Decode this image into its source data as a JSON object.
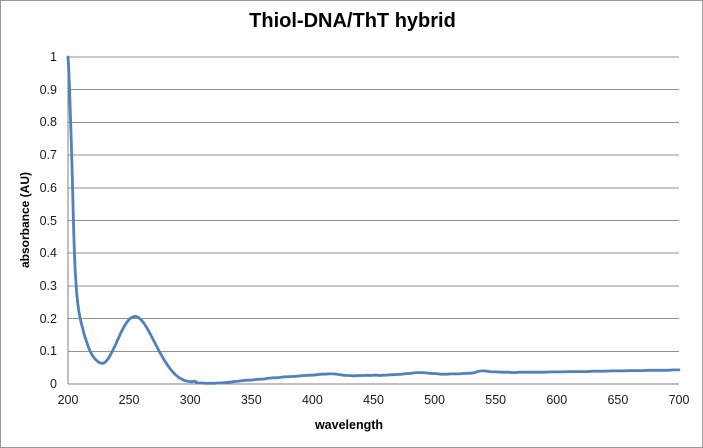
{
  "chart_data": {
    "type": "line",
    "title": "Thiol-DNA/ThT hybrid",
    "xlabel": "wavelength",
    "ylabel": "absorbance (AU)",
    "xlim": [
      200,
      700
    ],
    "ylim": [
      0,
      1
    ],
    "x_ticks": [
      "200",
      "250",
      "300",
      "350",
      "400",
      "450",
      "500",
      "550",
      "600",
      "650",
      "700"
    ],
    "y_ticks": [
      "1",
      "0.9",
      "0.8",
      "0.7",
      "0.6",
      "0.5",
      "0.4",
      "0.3",
      "0.2",
      "0.1",
      "0"
    ],
    "grid": "horizontal-major",
    "legend_position": "none",
    "colors": {
      "series_line": "#4F81BD",
      "gridline": "#909090",
      "axis_line": "#808080",
      "chart_border": "#9b9b9b",
      "text": "#000000"
    },
    "series": [
      {
        "name": "absorbance",
        "color": "#4F81BD",
        "points": [
          [
            200,
            1.0
          ],
          [
            200.5,
            0.97
          ],
          [
            201,
            0.93
          ],
          [
            201.5,
            0.88
          ],
          [
            202,
            0.82
          ],
          [
            202.5,
            0.76
          ],
          [
            203,
            0.7
          ],
          [
            203.5,
            0.63
          ],
          [
            204,
            0.56
          ],
          [
            204.5,
            0.49
          ],
          [
            205,
            0.43
          ],
          [
            205.5,
            0.38
          ],
          [
            206,
            0.34
          ],
          [
            207,
            0.28
          ],
          [
            208,
            0.245
          ],
          [
            209,
            0.22
          ],
          [
            210,
            0.2
          ],
          [
            211,
            0.185
          ],
          [
            212,
            0.17
          ],
          [
            213,
            0.155
          ],
          [
            214,
            0.143
          ],
          [
            215,
            0.132
          ],
          [
            216,
            0.12
          ],
          [
            217,
            0.11
          ],
          [
            218,
            0.101
          ],
          [
            219,
            0.094
          ],
          [
            220,
            0.088
          ],
          [
            221,
            0.082
          ],
          [
            222,
            0.077
          ],
          [
            223,
            0.073
          ],
          [
            224,
            0.07
          ],
          [
            225,
            0.067
          ],
          [
            226,
            0.065
          ],
          [
            227,
            0.064
          ],
          [
            228,
            0.063
          ],
          [
            229,
            0.064
          ],
          [
            230,
            0.066
          ],
          [
            231,
            0.069
          ],
          [
            232,
            0.073
          ],
          [
            233,
            0.078
          ],
          [
            234,
            0.084
          ],
          [
            235,
            0.091
          ],
          [
            236,
            0.098
          ],
          [
            237,
            0.106
          ],
          [
            238,
            0.113
          ],
          [
            239,
            0.121
          ],
          [
            240,
            0.13
          ],
          [
            241,
            0.138
          ],
          [
            242,
            0.146
          ],
          [
            243,
            0.154
          ],
          [
            244,
            0.162
          ],
          [
            245,
            0.169
          ],
          [
            246,
            0.176
          ],
          [
            247,
            0.182
          ],
          [
            248,
            0.188
          ],
          [
            249,
            0.193
          ],
          [
            250,
            0.197
          ],
          [
            251,
            0.201
          ],
          [
            252,
            0.203
          ],
          [
            253,
            0.205
          ],
          [
            254,
            0.206
          ],
          [
            255,
            0.207
          ],
          [
            256,
            0.206
          ],
          [
            257,
            0.205
          ],
          [
            258,
            0.202
          ],
          [
            259,
            0.199
          ],
          [
            260,
            0.196
          ],
          [
            261,
            0.191
          ],
          [
            262,
            0.186
          ],
          [
            263,
            0.181
          ],
          [
            264,
            0.175
          ],
          [
            265,
            0.169
          ],
          [
            266,
            0.162
          ],
          [
            267,
            0.155
          ],
          [
            268,
            0.148
          ],
          [
            269,
            0.141
          ],
          [
            270,
            0.134
          ],
          [
            271,
            0.126
          ],
          [
            272,
            0.119
          ],
          [
            273,
            0.112
          ],
          [
            274,
            0.105
          ],
          [
            275,
            0.098
          ],
          [
            276,
            0.091
          ],
          [
            277,
            0.085
          ],
          [
            278,
            0.078
          ],
          [
            279,
            0.072
          ],
          [
            280,
            0.066
          ],
          [
            281,
            0.06
          ],
          [
            282,
            0.055
          ],
          [
            283,
            0.05
          ],
          [
            284,
            0.045
          ],
          [
            285,
            0.04
          ],
          [
            286,
            0.036
          ],
          [
            287,
            0.032
          ],
          [
            288,
            0.028
          ],
          [
            289,
            0.025
          ],
          [
            290,
            0.022
          ],
          [
            291,
            0.019
          ],
          [
            292,
            0.017
          ],
          [
            293,
            0.015
          ],
          [
            294,
            0.013
          ],
          [
            295,
            0.011
          ],
          [
            296,
            0.01
          ],
          [
            297,
            0.009
          ],
          [
            298,
            0.008
          ],
          [
            299,
            0.008
          ],
          [
            300,
            0.007
          ],
          [
            301,
            0.007
          ],
          [
            302,
            0.007
          ],
          [
            303,
            0.008
          ],
          [
            304,
            0.009
          ],
          [
            305,
            0.005
          ],
          [
            306,
            0.004
          ],
          [
            307,
            0.003
          ],
          [
            308,
            0.003
          ],
          [
            310,
            0.003
          ],
          [
            312,
            0.002
          ],
          [
            315,
            0.002
          ],
          [
            318,
            0.002
          ],
          [
            320,
            0.002
          ],
          [
            322,
            0.003
          ],
          [
            325,
            0.003
          ],
          [
            328,
            0.004
          ],
          [
            330,
            0.005
          ],
          [
            333,
            0.006
          ],
          [
            335,
            0.007
          ],
          [
            338,
            0.008
          ],
          [
            340,
            0.009
          ],
          [
            343,
            0.01
          ],
          [
            345,
            0.011
          ],
          [
            348,
            0.012
          ],
          [
            350,
            0.012
          ],
          [
            353,
            0.013
          ],
          [
            355,
            0.014
          ],
          [
            358,
            0.015
          ],
          [
            360,
            0.015
          ],
          [
            363,
            0.017
          ],
          [
            365,
            0.018
          ],
          [
            368,
            0.019
          ],
          [
            370,
            0.019
          ],
          [
            373,
            0.02
          ],
          [
            375,
            0.021
          ],
          [
            378,
            0.022
          ],
          [
            380,
            0.022
          ],
          [
            383,
            0.023
          ],
          [
            385,
            0.023
          ],
          [
            388,
            0.024
          ],
          [
            390,
            0.025
          ],
          [
            393,
            0.026
          ],
          [
            395,
            0.026
          ],
          [
            398,
            0.027
          ],
          [
            400,
            0.027
          ],
          [
            403,
            0.028
          ],
          [
            405,
            0.029
          ],
          [
            408,
            0.03
          ],
          [
            410,
            0.03
          ],
          [
            413,
            0.031
          ],
          [
            415,
            0.031
          ],
          [
            418,
            0.031
          ],
          [
            420,
            0.03
          ],
          [
            423,
            0.028
          ],
          [
            425,
            0.027
          ],
          [
            428,
            0.026
          ],
          [
            430,
            0.026
          ],
          [
            433,
            0.025
          ],
          [
            435,
            0.025
          ],
          [
            438,
            0.026
          ],
          [
            440,
            0.026
          ],
          [
            443,
            0.026
          ],
          [
            445,
            0.027
          ],
          [
            448,
            0.026
          ],
          [
            450,
            0.027
          ],
          [
            453,
            0.027
          ],
          [
            455,
            0.026
          ],
          [
            458,
            0.027
          ],
          [
            460,
            0.027
          ],
          [
            463,
            0.028
          ],
          [
            465,
            0.028
          ],
          [
            468,
            0.029
          ],
          [
            470,
            0.029
          ],
          [
            473,
            0.03
          ],
          [
            475,
            0.031
          ],
          [
            478,
            0.032
          ],
          [
            480,
            0.032
          ],
          [
            483,
            0.034
          ],
          [
            485,
            0.035
          ],
          [
            488,
            0.035
          ],
          [
            490,
            0.035
          ],
          [
            493,
            0.034
          ],
          [
            495,
            0.033
          ],
          [
            498,
            0.032
          ],
          [
            500,
            0.032
          ],
          [
            503,
            0.031
          ],
          [
            505,
            0.03
          ],
          [
            508,
            0.03
          ],
          [
            510,
            0.03
          ],
          [
            513,
            0.031
          ],
          [
            515,
            0.031
          ],
          [
            518,
            0.031
          ],
          [
            520,
            0.031
          ],
          [
            523,
            0.032
          ],
          [
            525,
            0.032
          ],
          [
            528,
            0.033
          ],
          [
            530,
            0.033
          ],
          [
            533,
            0.035
          ],
          [
            535,
            0.038
          ],
          [
            538,
            0.04
          ],
          [
            540,
            0.04
          ],
          [
            543,
            0.039
          ],
          [
            545,
            0.038
          ],
          [
            548,
            0.037
          ],
          [
            550,
            0.037
          ],
          [
            555,
            0.036
          ],
          [
            560,
            0.036
          ],
          [
            565,
            0.035
          ],
          [
            570,
            0.036
          ],
          [
            575,
            0.036
          ],
          [
            580,
            0.036
          ],
          [
            585,
            0.036
          ],
          [
            590,
            0.036
          ],
          [
            595,
            0.037
          ],
          [
            600,
            0.037
          ],
          [
            605,
            0.037
          ],
          [
            610,
            0.038
          ],
          [
            615,
            0.038
          ],
          [
            620,
            0.038
          ],
          [
            625,
            0.038
          ],
          [
            630,
            0.039
          ],
          [
            635,
            0.039
          ],
          [
            640,
            0.039
          ],
          [
            645,
            0.04
          ],
          [
            650,
            0.04
          ],
          [
            655,
            0.04
          ],
          [
            660,
            0.041
          ],
          [
            665,
            0.041
          ],
          [
            670,
            0.041
          ],
          [
            675,
            0.042
          ],
          [
            680,
            0.042
          ],
          [
            685,
            0.042
          ],
          [
            690,
            0.042
          ],
          [
            695,
            0.043
          ],
          [
            700,
            0.043
          ]
        ]
      }
    ]
  }
}
